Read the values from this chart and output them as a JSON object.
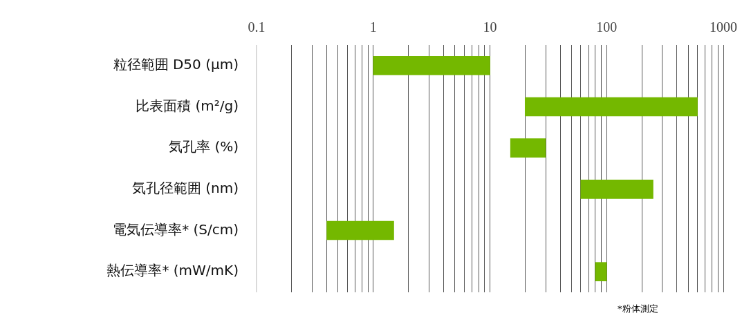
{
  "chart_data": {
    "type": "bar",
    "orientation": "horizontal",
    "categories": [
      "粒径範囲 D50 (μm)",
      "比表面積 (m²/g)",
      "気孔率 (%)",
      "気孔径範囲 (nm)",
      "電気伝導率* (S/cm)",
      "熱伝導率* (mW/mK)"
    ],
    "base": [
      1,
      20,
      15,
      60,
      0.4,
      80
    ],
    "values": [
      9,
      580,
      15,
      190,
      1.1,
      20
    ],
    "color": "#74b800",
    "log": "x",
    "xlim": [
      0.1,
      1000
    ],
    "xticks": [
      0.1,
      {
        "value": 0.2,
        "label": null
      },
      {
        "value": 0.3,
        "label": null
      },
      {
        "value": 0.4,
        "label": null
      },
      {
        "value": 0.5,
        "label": null
      },
      {
        "value": 0.6,
        "label": null
      },
      {
        "value": 0.7,
        "label": null
      },
      {
        "value": 0.8,
        "label": null
      },
      {
        "value": 0.9,
        "label": null
      },
      1,
      {
        "value": 2,
        "label": null
      },
      {
        "value": 3,
        "label": null
      },
      {
        "value": 4,
        "label": null
      },
      {
        "value": 5,
        "label": null
      },
      {
        "value": 6,
        "label": null
      },
      {
        "value": 7,
        "label": null
      },
      {
        "value": 8,
        "label": null
      },
      {
        "value": 9,
        "label": null
      },
      10,
      {
        "value": 20,
        "label": null
      },
      {
        "value": 30,
        "label": null
      },
      {
        "value": 40,
        "label": null
      },
      {
        "value": 50,
        "label": null
      },
      {
        "value": 60,
        "label": null
      },
      {
        "value": 70,
        "label": null
      },
      {
        "value": 80,
        "label": null
      },
      {
        "value": 90,
        "label": null
      },
      100,
      {
        "value": 200,
        "label": null
      },
      {
        "value": 300,
        "label": null
      },
      {
        "value": 400,
        "label": null
      },
      {
        "value": 500,
        "label": null
      },
      {
        "value": 600,
        "label": null
      },
      {
        "value": 700,
        "label": null
      },
      {
        "value": 800,
        "label": null
      },
      {
        "value": 900,
        "label": null
      },
      1000
    ],
    "grid": "x",
    "annotations": [
      "*粉体測定"
    ]
  }
}
